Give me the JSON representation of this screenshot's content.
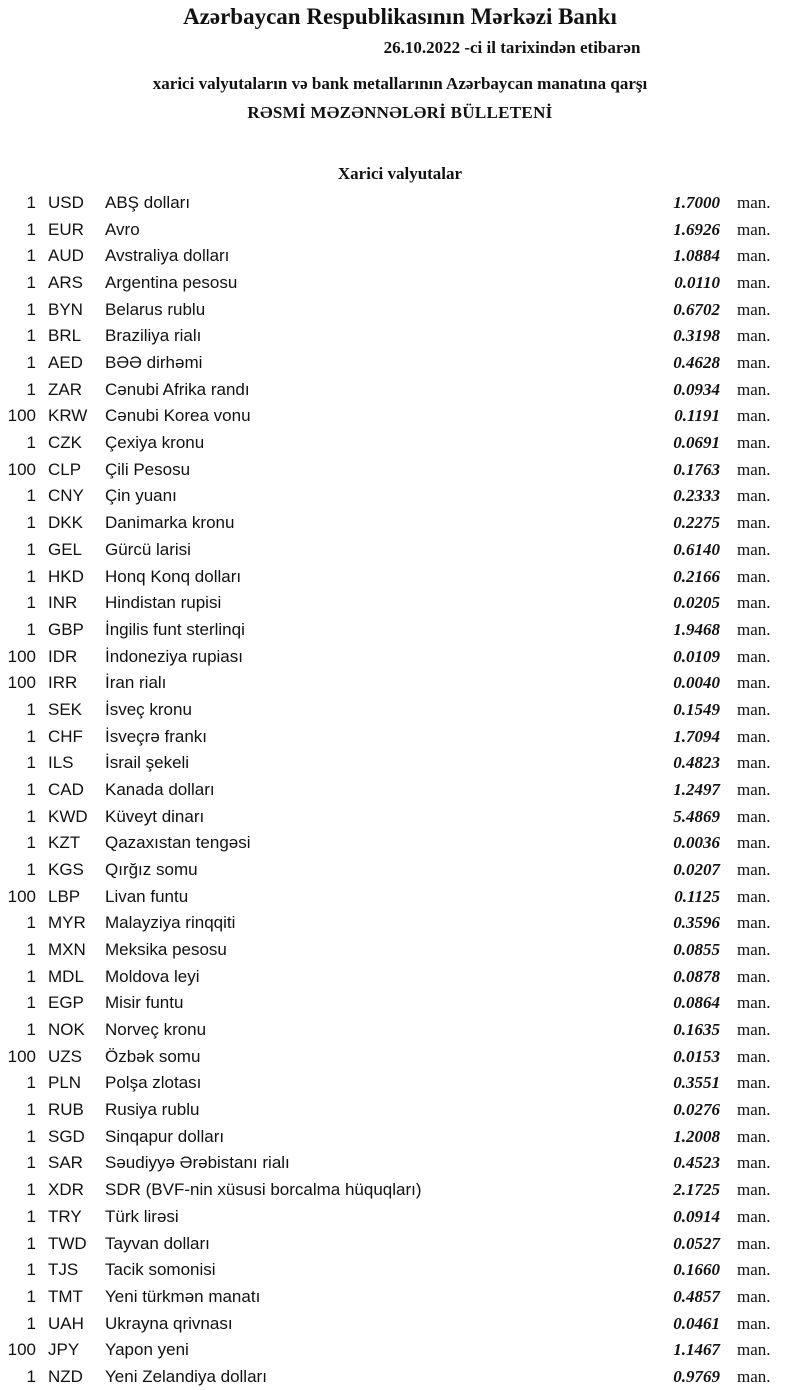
{
  "header": {
    "title": "Azərbaycan Respublikasının Mərkəzi Bankı",
    "date_line": "26.10.2022 -ci il tarixindən etibarən",
    "subtitle": "xarici valyutaların və bank metallarının Azərbaycan manatına qarşı",
    "bulletin": "RƏSMİ MƏZƏNNƏLƏRİ BÜLLETENİ"
  },
  "section_title": "Xarici valyutalar",
  "unit": "man.",
  "rates": [
    {
      "amount": "1",
      "code": "USD",
      "name": "ABŞ dolları",
      "value": "1.7000"
    },
    {
      "amount": "1",
      "code": "EUR",
      "name": "Avro",
      "value": "1.6926"
    },
    {
      "amount": "1",
      "code": "AUD",
      "name": "Avstraliya dolları",
      "value": "1.0884"
    },
    {
      "amount": "1",
      "code": "ARS",
      "name": "Argentina pesosu",
      "value": "0.0110"
    },
    {
      "amount": "1",
      "code": "BYN",
      "name": "Belarus rublu",
      "value": "0.6702"
    },
    {
      "amount": "1",
      "code": "BRL",
      "name": "Braziliya rialı",
      "value": "0.3198"
    },
    {
      "amount": "1",
      "code": "AED",
      "name": "BƏƏ dirhəmi",
      "value": "0.4628"
    },
    {
      "amount": "1",
      "code": "ZAR",
      "name": "Cənubi Afrika randı",
      "value": "0.0934"
    },
    {
      "amount": "100",
      "code": "KRW",
      "name": "Cənubi Korea vonu",
      "value": "0.1191"
    },
    {
      "amount": "1",
      "code": "CZK",
      "name": "Çexiya kronu",
      "value": "0.0691"
    },
    {
      "amount": "100",
      "code": "CLP",
      "name": "Çili Pesosu",
      "value": "0.1763"
    },
    {
      "amount": "1",
      "code": "CNY",
      "name": "Çin yuanı",
      "value": "0.2333"
    },
    {
      "amount": "1",
      "code": "DKK",
      "name": "Danimarka kronu",
      "value": "0.2275"
    },
    {
      "amount": "1",
      "code": "GEL",
      "name": "Gürcü larisi",
      "value": "0.6140"
    },
    {
      "amount": "1",
      "code": "HKD",
      "name": "Honq Konq dolları",
      "value": "0.2166"
    },
    {
      "amount": "1",
      "code": "INR",
      "name": "Hindistan rupisi",
      "value": "0.0205"
    },
    {
      "amount": "1",
      "code": "GBP",
      "name": "İngilis funt sterlinqi",
      "value": "1.9468"
    },
    {
      "amount": "100",
      "code": "IDR",
      "name": "İndoneziya rupiası",
      "value": "0.0109"
    },
    {
      "amount": "100",
      "code": "IRR",
      "name": "İran rialı",
      "value": "0.0040"
    },
    {
      "amount": "1",
      "code": "SEK",
      "name": "İsveç kronu",
      "value": "0.1549"
    },
    {
      "amount": "1",
      "code": "CHF",
      "name": "İsveçrə frankı",
      "value": "1.7094"
    },
    {
      "amount": "1",
      "code": "ILS",
      "name": "İsrail şekeli",
      "value": "0.4823"
    },
    {
      "amount": "1",
      "code": "CAD",
      "name": "Kanada dolları",
      "value": "1.2497"
    },
    {
      "amount": "1",
      "code": "KWD",
      "name": "Küveyt dinarı",
      "value": "5.4869"
    },
    {
      "amount": "1",
      "code": "KZT",
      "name": "Qazaxıstan tengəsi",
      "value": "0.0036"
    },
    {
      "amount": "1",
      "code": "KGS",
      "name": "Qırğız somu",
      "value": "0.0207"
    },
    {
      "amount": "100",
      "code": "LBP",
      "name": "Livan funtu",
      "value": "0.1125"
    },
    {
      "amount": "1",
      "code": "MYR",
      "name": "Malayziya rinqqiti",
      "value": "0.3596"
    },
    {
      "amount": "1",
      "code": "MXN",
      "name": "Meksika pesosu",
      "value": "0.0855"
    },
    {
      "amount": "1",
      "code": "MDL",
      "name": "Moldova leyi",
      "value": "0.0878"
    },
    {
      "amount": "1",
      "code": "EGP",
      "name": "Misir funtu",
      "value": "0.0864"
    },
    {
      "amount": "1",
      "code": "NOK",
      "name": "Norveç kronu",
      "value": "0.1635"
    },
    {
      "amount": "100",
      "code": "UZS",
      "name": "Özbək somu",
      "value": "0.0153"
    },
    {
      "amount": "1",
      "code": "PLN",
      "name": "Polşa zlotası",
      "value": "0.3551"
    },
    {
      "amount": "1",
      "code": "RUB",
      "name": "Rusiya rublu",
      "value": "0.0276"
    },
    {
      "amount": "1",
      "code": "SGD",
      "name": "Sinqapur dolları",
      "value": "1.2008"
    },
    {
      "amount": "1",
      "code": "SAR",
      "name": "Səudiyyə Ərəbistanı rialı",
      "value": "0.4523"
    },
    {
      "amount": "1",
      "code": "XDR",
      "name": "SDR (BVF-nin xüsusi borcalma hüquqları)",
      "value": "2.1725"
    },
    {
      "amount": "1",
      "code": "TRY",
      "name": "Türk lirəsi",
      "value": "0.0914"
    },
    {
      "amount": "1",
      "code": "TWD",
      "name": "Tayvan dolları",
      "value": "0.0527"
    },
    {
      "amount": "1",
      "code": "TJS",
      "name": "Tacik somonisi",
      "value": "0.1660"
    },
    {
      "amount": "1",
      "code": "TMT",
      "name": "Yeni türkmən manatı",
      "value": "0.4857"
    },
    {
      "amount": "1",
      "code": "UAH",
      "name": "Ukrayna qrivnası",
      "value": "0.0461"
    },
    {
      "amount": "100",
      "code": "JPY",
      "name": "Yapon yeni",
      "value": "1.1467"
    },
    {
      "amount": "1",
      "code": "NZD",
      "name": "Yeni Zelandiya dolları",
      "value": "0.9769"
    }
  ]
}
